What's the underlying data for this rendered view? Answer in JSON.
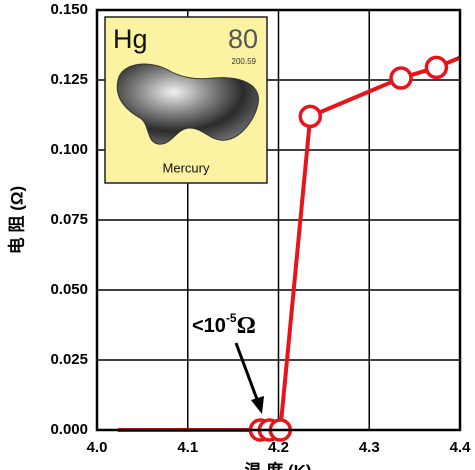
{
  "chart_data": {
    "type": "line",
    "x_label": "温 度 (K)",
    "y_label": "电 阻 (Ω)",
    "x": [
      4.023,
      4.18,
      4.19,
      4.202,
      4.235,
      4.335,
      4.374,
      4.4
    ],
    "series": [
      {
        "color": "#e8141b",
        "values": [
          0,
          0,
          0,
          0,
          0.112,
          0.1257,
          0.1295,
          0.133
        ],
        "markers": [
          false,
          true,
          true,
          true,
          true,
          true,
          true,
          false
        ]
      }
    ],
    "xlim": [
      4.0,
      4.4
    ],
    "xticks": [
      {
        "value": 4.0,
        "label": "4.0"
      },
      4.1,
      4.2,
      4.3,
      4.4
    ],
    "ylim": [
      0,
      0.15
    ],
    "yticks": [
      {
        "value": 0,
        "label": "0.000"
      },
      {
        "value": 0.025,
        "label": "0.025"
      },
      {
        "value": 0.05,
        "label": "0.050"
      },
      {
        "value": 0.075,
        "label": "0.075"
      },
      {
        "value": 0.1,
        "label": "0.100"
      },
      {
        "value": 0.125,
        "label": "0.125"
      },
      {
        "value": 0.15,
        "label": "0.150"
      }
    ],
    "grid": true,
    "annotation": {
      "text": "<10",
      "sup": "-5",
      "unit": "Ω"
    },
    "inset": {
      "symbol": "Hg",
      "number": "80",
      "mass": "200.59",
      "name": "Mercury"
    }
  }
}
